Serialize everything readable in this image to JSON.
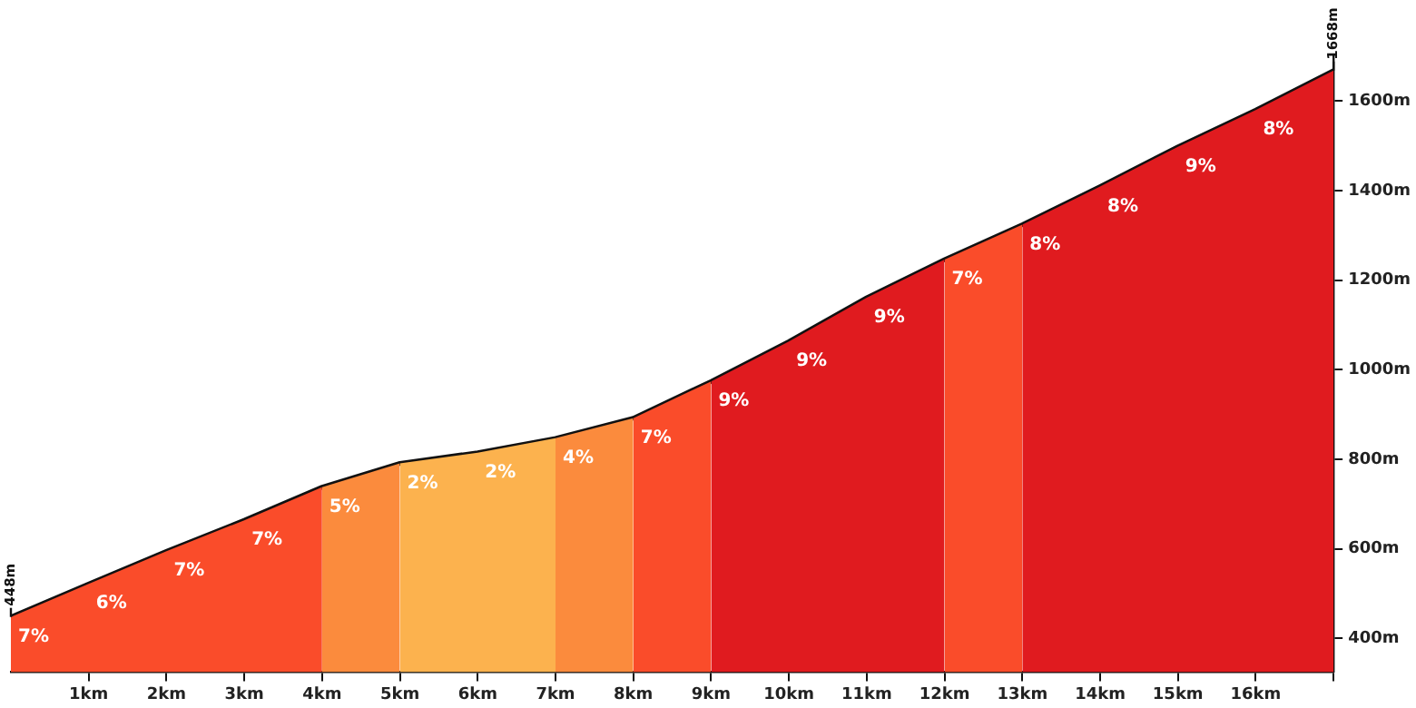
{
  "chart_data": {
    "type": "area",
    "xlim": [
      0,
      17
    ],
    "ylim": [
      325,
      1700
    ],
    "xticks": [
      {
        "value": 1,
        "label": "1km"
      },
      {
        "value": 2,
        "label": "2km"
      },
      {
        "value": 3,
        "label": "3km"
      },
      {
        "value": 4,
        "label": "4km"
      },
      {
        "value": 5,
        "label": "5km"
      },
      {
        "value": 6,
        "label": "6km"
      },
      {
        "value": 7,
        "label": "7km"
      },
      {
        "value": 8,
        "label": "8km"
      },
      {
        "value": 9,
        "label": "9km"
      },
      {
        "value": 10,
        "label": "10km"
      },
      {
        "value": 11,
        "label": "11km"
      },
      {
        "value": 12,
        "label": "12km"
      },
      {
        "value": 13,
        "label": "13km"
      },
      {
        "value": 14,
        "label": "14km"
      },
      {
        "value": 15,
        "label": "15km"
      },
      {
        "value": 16,
        "label": "16km"
      },
      {
        "value": 17,
        "label": null
      }
    ],
    "yticks": [
      {
        "value": 400,
        "label": "400m"
      },
      {
        "value": 600,
        "label": "600m"
      },
      {
        "value": 800,
        "label": "800m"
      },
      {
        "value": 1000,
        "label": "1000m"
      },
      {
        "value": 1200,
        "label": "1200m"
      },
      {
        "value": 1400,
        "label": "1400m"
      },
      {
        "value": 1600,
        "label": "1600m"
      }
    ],
    "series": [
      {
        "color": "#fa4c2a",
        "x": [
          0,
          1,
          2,
          3,
          4
        ],
        "values": [
          448,
          522,
          595,
          664,
          738
        ]
      },
      {
        "color": "#fb8b3d",
        "x": [
          4,
          5
        ],
        "values": [
          738,
          791
        ]
      },
      {
        "color": "#fcb24e",
        "x": [
          5,
          6,
          7
        ],
        "values": [
          791,
          815,
          847
        ]
      },
      {
        "color": "#fb8b3d",
        "x": [
          7,
          8
        ],
        "values": [
          847,
          892
        ]
      },
      {
        "color": "#fa4c2a",
        "x": [
          8,
          9
        ],
        "values": [
          892,
          974
        ]
      },
      {
        "color": "#e01b1f",
        "x": [
          9,
          10,
          11,
          12
        ],
        "values": [
          974,
          1063,
          1161,
          1246
        ]
      },
      {
        "color": "#fa4c2a",
        "x": [
          12,
          13
        ],
        "values": [
          1246,
          1324
        ]
      },
      {
        "color": "#e01b1f",
        "x": [
          13,
          14,
          15,
          16,
          17
        ],
        "values": [
          1324,
          1409,
          1498,
          1580,
          1668
        ]
      },
      {
        "type": "line",
        "color": "#111111",
        "x": [
          0,
          1,
          2,
          3,
          4,
          5,
          6,
          7,
          8,
          9,
          10,
          11,
          12,
          13,
          14,
          15,
          16,
          17
        ],
        "values": [
          448,
          522,
          595,
          664,
          738,
          791,
          815,
          847,
          892,
          974,
          1063,
          1161,
          1246,
          1324,
          1409,
          1498,
          1580,
          1668
        ]
      }
    ],
    "annotations": [
      {
        "text": "7%",
        "x": 0,
        "y": 448
      },
      {
        "text": "6%",
        "x": 1,
        "y": 522
      },
      {
        "text": "7%",
        "x": 2,
        "y": 595
      },
      {
        "text": "7%",
        "x": 3,
        "y": 664
      },
      {
        "text": "5%",
        "x": 4,
        "y": 738
      },
      {
        "text": "2%",
        "x": 5,
        "y": 791
      },
      {
        "text": "2%",
        "x": 6,
        "y": 815
      },
      {
        "text": "4%",
        "x": 7,
        "y": 847
      },
      {
        "text": "7%",
        "x": 8,
        "y": 892
      },
      {
        "text": "9%",
        "x": 9,
        "y": 974
      },
      {
        "text": "9%",
        "x": 10,
        "y": 1063
      },
      {
        "text": "9%",
        "x": 11,
        "y": 1161
      },
      {
        "text": "7%",
        "x": 12,
        "y": 1246
      },
      {
        "text": "8%",
        "x": 13,
        "y": 1324
      },
      {
        "text": "8%",
        "x": 14,
        "y": 1409
      },
      {
        "text": "9%",
        "x": 15,
        "y": 1498
      },
      {
        "text": "8%",
        "x": 16,
        "y": 1580
      },
      {
        "text": "448m",
        "x": 0,
        "y": 448
      },
      {
        "text": "1668m",
        "x": 17,
        "y": 1668
      }
    ]
  }
}
